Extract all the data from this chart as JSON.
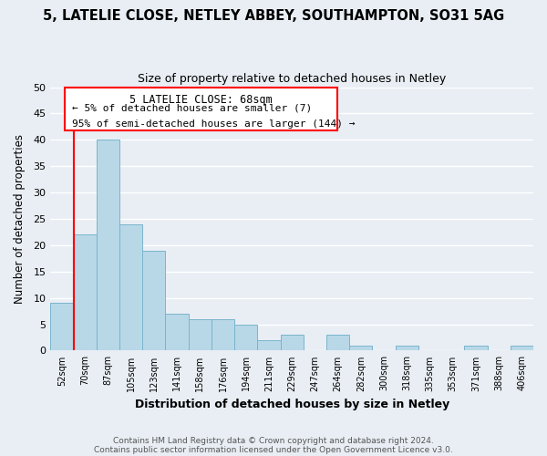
{
  "title": "5, LATELIE CLOSE, NETLEY ABBEY, SOUTHAMPTON, SO31 5AG",
  "subtitle": "Size of property relative to detached houses in Netley",
  "xlabel": "Distribution of detached houses by size in Netley",
  "ylabel": "Number of detached properties",
  "bar_labels": [
    "52sqm",
    "70sqm",
    "87sqm",
    "105sqm",
    "123sqm",
    "141sqm",
    "158sqm",
    "176sqm",
    "194sqm",
    "211sqm",
    "229sqm",
    "247sqm",
    "264sqm",
    "282sqm",
    "300sqm",
    "318sqm",
    "335sqm",
    "353sqm",
    "371sqm",
    "388sqm",
    "406sqm"
  ],
  "bar_values": [
    9,
    22,
    40,
    24,
    19,
    7,
    6,
    6,
    5,
    2,
    3,
    0,
    3,
    1,
    0,
    1,
    0,
    0,
    1,
    0,
    1
  ],
  "bar_color": "#b8d8e8",
  "bar_edge_color": "#7ab4cc",
  "annotation_title": "5 LATELIE CLOSE: 68sqm",
  "annotation_line1": "← 5% of detached houses are smaller (7)",
  "annotation_line2": "95% of semi-detached houses are larger (144) →",
  "ylim": [
    0,
    50
  ],
  "yticks": [
    0,
    5,
    10,
    15,
    20,
    25,
    30,
    35,
    40,
    45,
    50
  ],
  "footer1": "Contains HM Land Registry data © Crown copyright and database right 2024.",
  "footer2": "Contains public sector information licensed under the Open Government Licence v3.0.",
  "background_color": "#e8eef4",
  "grid_color": "#ffffff",
  "title_fontsize": 10.5,
  "subtitle_fontsize": 9
}
